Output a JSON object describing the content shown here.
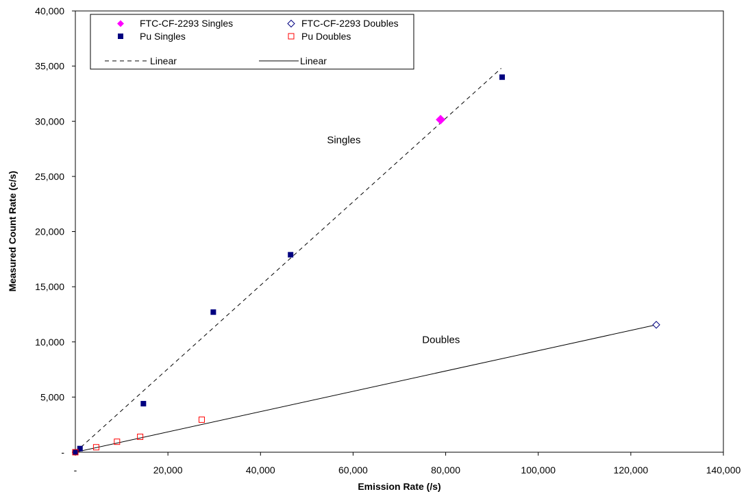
{
  "chart_data": {
    "type": "scatter",
    "xlabel": "Emission Rate (/s)",
    "ylabel": "Measured Count Rate (c/s)",
    "xlim": [
      0,
      140000
    ],
    "ylim": [
      0,
      40000
    ],
    "x_ticks": [
      {
        "value": 0,
        "label": "-"
      },
      {
        "value": 20000,
        "label": "20,000"
      },
      {
        "value": 40000,
        "label": "40,000"
      },
      {
        "value": 60000,
        "label": "60,000"
      },
      {
        "value": 80000,
        "label": "80,000"
      },
      {
        "value": 100000,
        "label": "100,000"
      },
      {
        "value": 120000,
        "label": "120,000"
      },
      {
        "value": 140000,
        "label": "140,000"
      }
    ],
    "y_ticks": [
      {
        "value": 0,
        "label": "-"
      },
      {
        "value": 5000,
        "label": "5,000"
      },
      {
        "value": 10000,
        "label": "10,000"
      },
      {
        "value": 15000,
        "label": "15,000"
      },
      {
        "value": 20000,
        "label": "20,000"
      },
      {
        "value": 25000,
        "label": "25,000"
      },
      {
        "value": 30000,
        "label": "30,000"
      },
      {
        "value": 35000,
        "label": "35,000"
      },
      {
        "value": 40000,
        "label": "40,000"
      }
    ],
    "grid": false,
    "legend_position": "top-left",
    "series": [
      {
        "name": "FTC-CF-2293 Singles",
        "marker": "diamond-filled",
        "color": "#ff00ff",
        "points": [
          [
            78900,
            30150
          ]
        ]
      },
      {
        "name": "FTC-CF-2293 Doubles",
        "marker": "diamond-open",
        "color": "#000080",
        "points": [
          [
            125500,
            11550
          ]
        ]
      },
      {
        "name": "Pu Singles",
        "marker": "square-filled",
        "color": "#000080",
        "points": [
          [
            0,
            0
          ],
          [
            1000,
            330
          ],
          [
            14700,
            4400
          ],
          [
            29800,
            12700
          ],
          [
            46500,
            17900
          ],
          [
            92200,
            34000
          ]
        ]
      },
      {
        "name": "Pu Doubles",
        "marker": "square-open",
        "color": "#ff0000",
        "points": [
          [
            0,
            0
          ],
          [
            4500,
            450
          ],
          [
            9000,
            950
          ],
          [
            14000,
            1400
          ],
          [
            27300,
            2950
          ]
        ]
      }
    ],
    "fit_lines": [
      {
        "name": "Linear",
        "style": "dashed",
        "color": "#000000",
        "from": [
          0,
          0
        ],
        "to": [
          92000,
          34800
        ]
      },
      {
        "name": "Linear",
        "style": "solid",
        "color": "#000000",
        "from": [
          0,
          0
        ],
        "to": [
          125500,
          11550
        ]
      }
    ],
    "annotations": [
      {
        "text": "Singles",
        "at": [
          58000,
          28000
        ]
      },
      {
        "text": "Doubles",
        "at": [
          79000,
          9900
        ]
      }
    ]
  }
}
